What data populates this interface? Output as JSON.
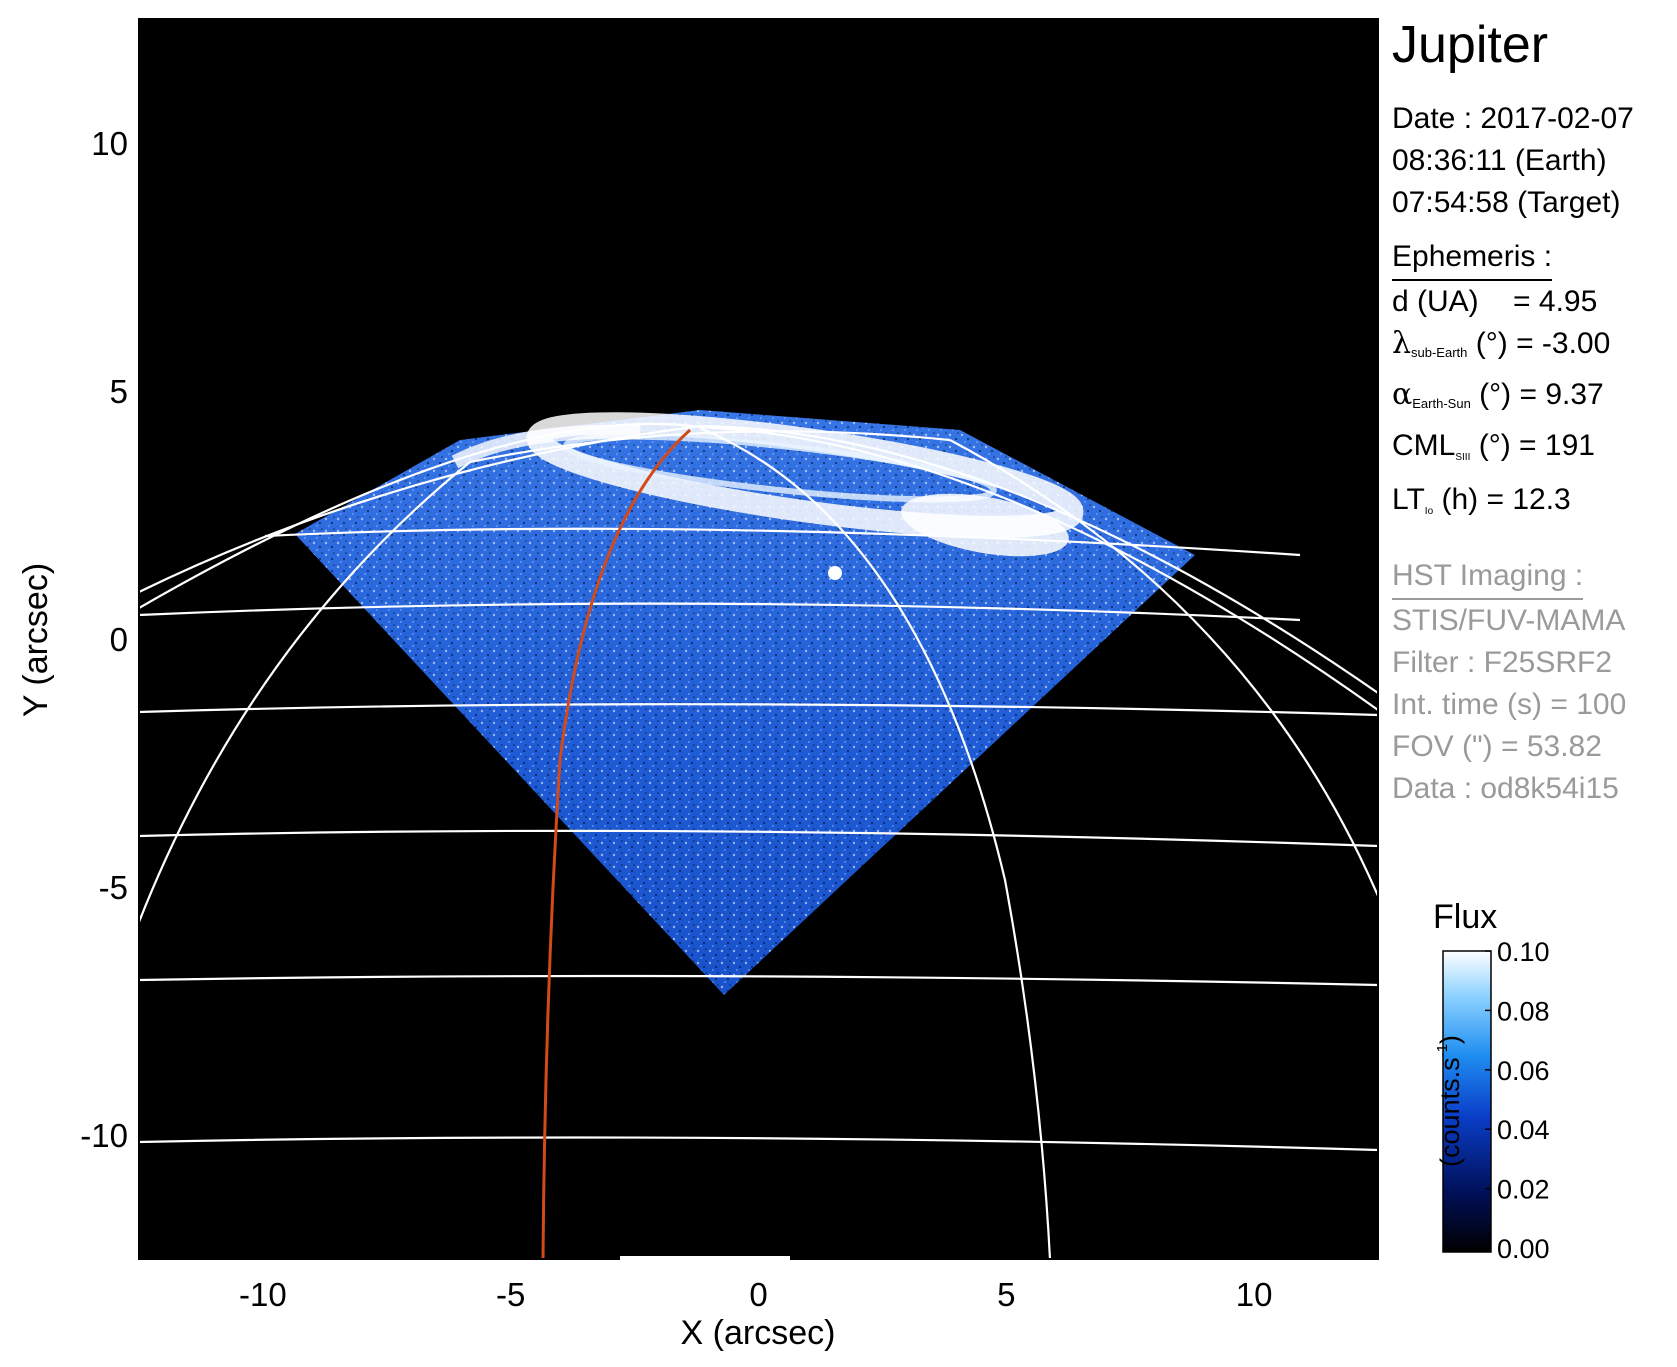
{
  "figure": {
    "title": "Jupiter",
    "date_label": "Date : 2017-02-07",
    "time_earth": "08:36:11 (Earth)",
    "time_target": "07:54:58 (Target)"
  },
  "ephemeris": {
    "heading": "Ephemeris :",
    "d": {
      "name": "d (UA)",
      "value": "= 4.95"
    },
    "lambda": {
      "symbol": "λ",
      "sub": "sub-Earth",
      "unit": "(°)",
      "value": "= -3.00"
    },
    "alpha": {
      "symbol": "α",
      "sub": "Earth-Sun",
      "unit": "(°)",
      "value": "= 9.37"
    },
    "cml": {
      "name": "CML",
      "sub": "SIII",
      "unit": "(°)",
      "value": "= 191"
    },
    "lt": {
      "name": "LT",
      "sub": "Io",
      "unit": "(h)",
      "value": "= 12.3"
    }
  },
  "hst": {
    "heading": "HST Imaging :",
    "instrument": "STIS/FUV-MAMA",
    "filter": "Filter : F25SRF2",
    "int_time": "Int. time (s) = 100",
    "fov": "FOV (\") = 53.82",
    "data": "Data : od8k54i15"
  },
  "axes": {
    "xlabel": "X (arcsec)",
    "ylabel": "Y (arcsec)",
    "xlim": [
      -12.5,
      12.5
    ],
    "ylim": [
      -12.5,
      12.5
    ],
    "xticks": [
      -10,
      -5,
      0,
      5,
      10
    ],
    "yticks": [
      -10,
      -5,
      0,
      5,
      10
    ]
  },
  "colorbar": {
    "title": "Flux",
    "label": "(counts.s",
    "label_sup": "-1",
    "label_close": ")",
    "ticks": [
      "0.10",
      "0.08",
      "0.06",
      "0.04",
      "0.02",
      "0.00"
    ],
    "range": [
      0,
      0.1
    ],
    "colors": [
      "#000000",
      "#00105a",
      "#0a3ec8",
      "#1e8cf0",
      "#8cd2ff",
      "#ffffff"
    ]
  },
  "colors": {
    "background": "#000000",
    "grid": "#ffffff",
    "meridian": "#d24a1a",
    "emission": "#1f5fe6"
  }
}
